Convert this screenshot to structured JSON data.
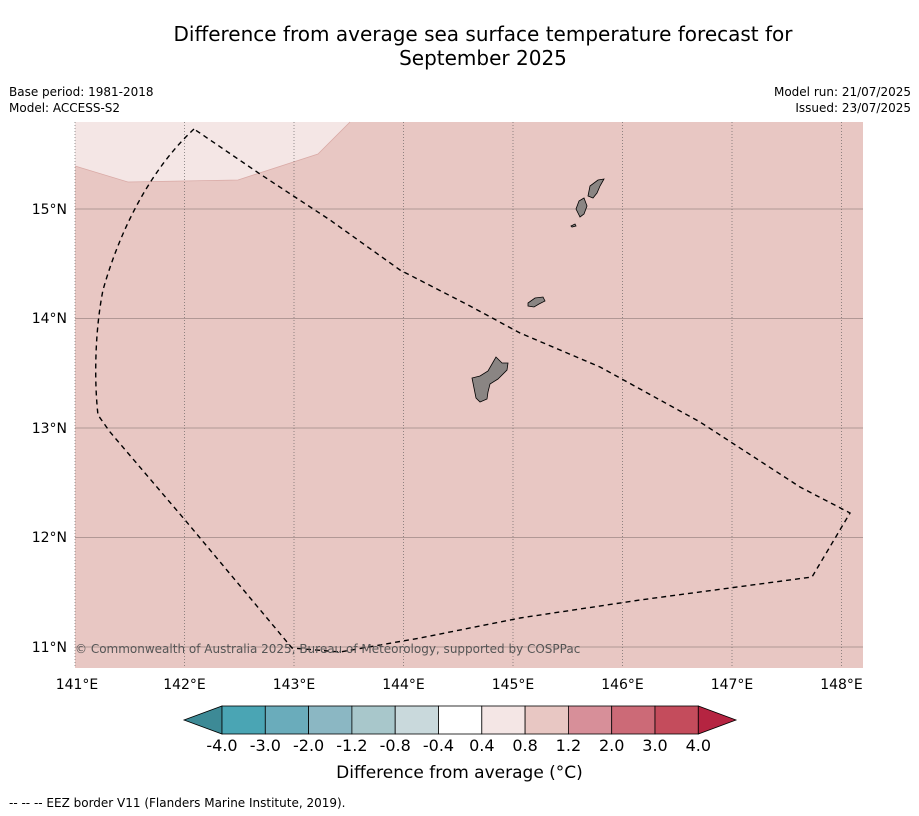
{
  "title_line1": "Difference from average sea surface temperature forecast for",
  "title_line2": "September 2025",
  "base_period": "Base period: 1981-2018",
  "model": "Model: ACCESS-S2",
  "model_run": "Model run: 21/07/2025",
  "issued": "Issued: 23/07/2025",
  "credit": "© Commonwealth of Australia 2025, Bureau of Meteorology, supported by COSPPac",
  "colorbar": {
    "label": "Difference from average (°C)",
    "ticks": [
      "-4.0",
      "-3.0",
      "-2.0",
      "-1.2",
      "-0.8",
      "-0.4",
      "0.4",
      "0.8",
      "1.2",
      "2.0",
      "3.0",
      "4.0"
    ],
    "colors": [
      "#3d8a96",
      "#4aa5b4",
      "#6aacbb",
      "#8bb7c3",
      "#a8c7cb",
      "#c9d9dc",
      "#ffffff",
      "#f4e6e5",
      "#e8c7c3",
      "#d78f99",
      "#cc6a77",
      "#c44c5c",
      "#b52441"
    ]
  },
  "footer": "-- -- -- EEZ border V11 (Flanders Marine Institute, 2019).",
  "map": {
    "lon_range": [
      141,
      148.2
    ],
    "lat_range": [
      10.8,
      15.8
    ],
    "lon_labels": [
      "141°E",
      "142°E",
      "143°E",
      "144°E",
      "145°E",
      "146°E",
      "147°E",
      "148°E"
    ],
    "lat_labels": [
      "11°N",
      "12°N",
      "13°N",
      "14°N",
      "15°N"
    ],
    "fill_color": "#e8c7c3",
    "light_fill_color": "#f4e6e5",
    "land_color": "#8a8583"
  }
}
